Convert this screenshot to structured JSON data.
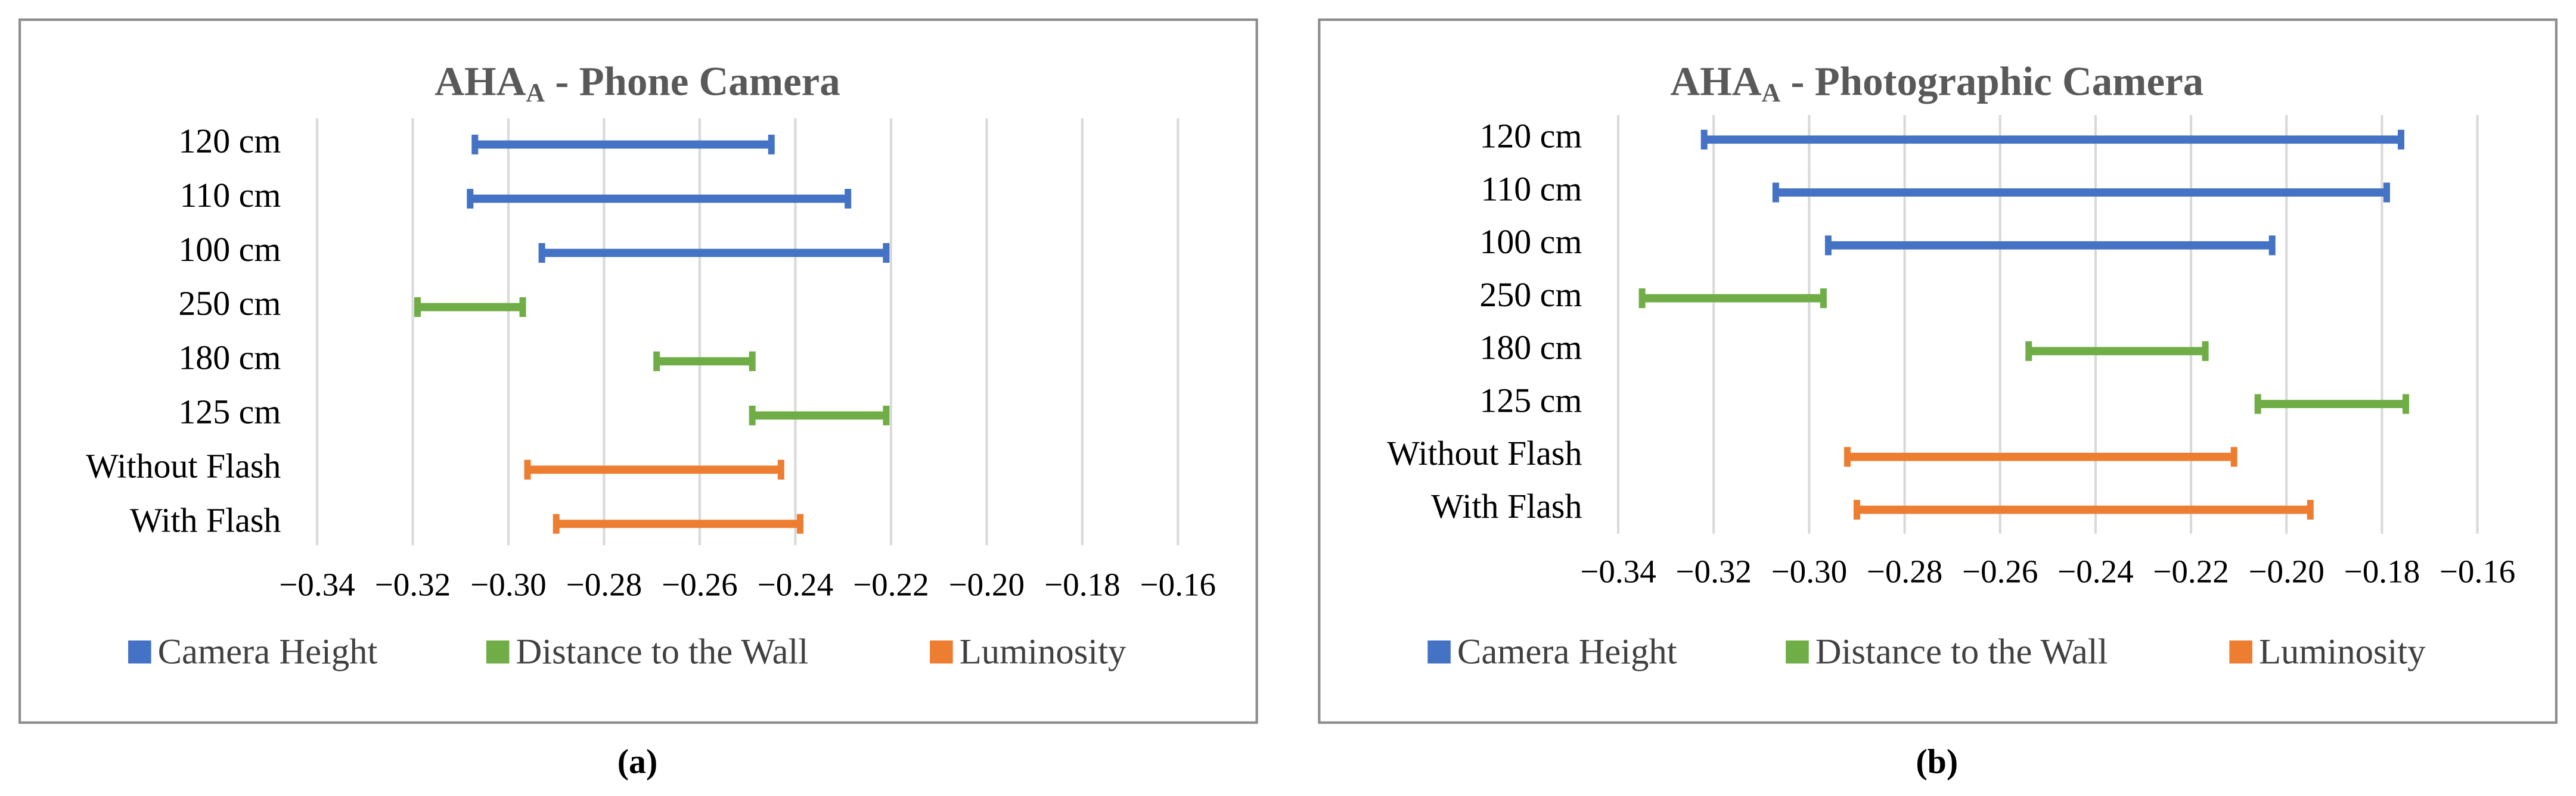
{
  "chart_data": [
    {
      "type": "range_bar",
      "title": {
        "main": "AHA",
        "subscript": "A",
        "rest": " - Phone Camera"
      },
      "caption": "(a)",
      "categories": [
        "120 cm",
        "110 cm",
        "100 cm",
        "250 cm",
        "180 cm",
        "125 cm",
        "Without Flash",
        "With Flash"
      ],
      "series": [
        {
          "name": "Camera Height",
          "color": "#4472c4",
          "low": [
            -0.307,
            -0.308,
            -0.293,
            null,
            null,
            null,
            null,
            null
          ],
          "high": [
            -0.245,
            -0.229,
            -0.221,
            null,
            null,
            null,
            null,
            null
          ]
        },
        {
          "name": "Distance to the Wall",
          "color": "#70ad47",
          "low": [
            null,
            null,
            null,
            -0.319,
            -0.269,
            -0.249,
            null,
            null
          ],
          "high": [
            null,
            null,
            null,
            -0.297,
            -0.249,
            -0.221,
            null,
            null
          ]
        },
        {
          "name": "Luminosity",
          "color": "#ed7d31",
          "low": [
            null,
            null,
            null,
            null,
            null,
            null,
            -0.296,
            -0.29
          ],
          "high": [
            null,
            null,
            null,
            null,
            null,
            null,
            -0.243,
            -0.239
          ]
        }
      ],
      "xlim": [
        -0.34,
        -0.16
      ],
      "xticks": [
        {
          "value": -0.34,
          "label": "−0.34"
        },
        {
          "value": -0.32,
          "label": "−0.32"
        },
        {
          "value": -0.3,
          "label": "−0.30"
        },
        {
          "value": -0.28,
          "label": "−0.28"
        },
        {
          "value": -0.26,
          "label": "−0.26"
        },
        {
          "value": -0.24,
          "label": "−0.24"
        },
        {
          "value": -0.22,
          "label": "−0.22"
        },
        {
          "value": -0.2,
          "label": "−0.20"
        },
        {
          "value": -0.18,
          "label": "−0.18"
        },
        {
          "value": -0.16,
          "label": "−0.16"
        }
      ],
      "grid": true,
      "legend": "bottom"
    },
    {
      "type": "range_bar",
      "title": {
        "main": "AHA",
        "subscript": "A",
        "rest": " - Photographic Camera"
      },
      "caption": "(b)",
      "categories": [
        "120 cm",
        "110 cm",
        "100 cm",
        "250 cm",
        "180 cm",
        "125 cm",
        "Without Flash",
        "With Flash"
      ],
      "series": [
        {
          "name": "Camera Height",
          "color": "#4472c4",
          "low": [
            -0.322,
            -0.307,
            -0.296,
            null,
            null,
            null,
            null,
            null
          ],
          "high": [
            -0.176,
            -0.179,
            -0.203,
            null,
            null,
            null,
            null,
            null
          ]
        },
        {
          "name": "Distance to the Wall",
          "color": "#70ad47",
          "low": [
            null,
            null,
            null,
            -0.335,
            -0.254,
            -0.206,
            null,
            null
          ],
          "high": [
            null,
            null,
            null,
            -0.297,
            -0.217,
            -0.175,
            null,
            null
          ]
        },
        {
          "name": "Luminosity",
          "color": "#ed7d31",
          "low": [
            null,
            null,
            null,
            null,
            null,
            null,
            -0.292,
            -0.29
          ],
          "high": [
            null,
            null,
            null,
            null,
            null,
            null,
            -0.211,
            -0.195
          ]
        }
      ],
      "xlim": [
        -0.34,
        -0.16
      ],
      "xticks": [
        {
          "value": -0.34,
          "label": "−0.34"
        },
        {
          "value": -0.32,
          "label": "−0.32"
        },
        {
          "value": -0.3,
          "label": "−0.30"
        },
        {
          "value": -0.28,
          "label": "−0.28"
        },
        {
          "value": -0.26,
          "label": "−0.26"
        },
        {
          "value": -0.24,
          "label": "−0.24"
        },
        {
          "value": -0.22,
          "label": "−0.22"
        },
        {
          "value": -0.2,
          "label": "−0.20"
        },
        {
          "value": -0.18,
          "label": "−0.18"
        },
        {
          "value": -0.16,
          "label": "−0.16"
        }
      ],
      "grid": true,
      "legend": "bottom"
    }
  ]
}
